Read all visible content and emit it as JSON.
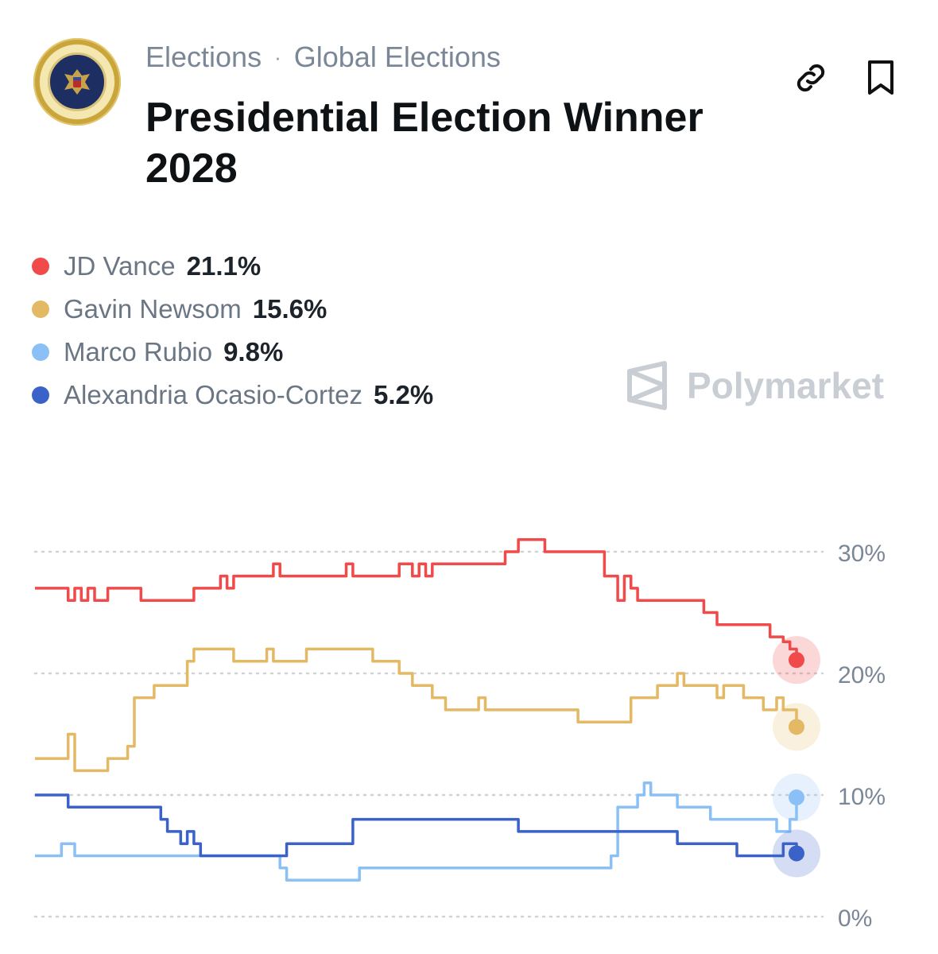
{
  "header": {
    "breadcrumb": [
      "Elections",
      "Global Elections"
    ],
    "separator": "·",
    "title": "Presidential Election Winner 2028"
  },
  "icons": {
    "seal": "presidential-seal-icon",
    "link": "link-icon",
    "bookmark": "bookmark-icon"
  },
  "watermark": "Polymarket",
  "chart_data": {
    "type": "line",
    "title": "Presidential Election Winner 2028",
    "xlabel": "",
    "ylabel": "",
    "ylim": [
      0,
      32
    ],
    "yticks": [
      0,
      10,
      20,
      30
    ],
    "ytick_labels": [
      "0%",
      "10%",
      "20%",
      "30%"
    ],
    "grid": true,
    "legend": "top-left",
    "series": [
      {
        "name": "JD Vance",
        "value_label": "21.1%",
        "color": "#f04a4a",
        "values": [
          27,
          27,
          27,
          27,
          27,
          26,
          27,
          26,
          27,
          26,
          26,
          27,
          27,
          27,
          27,
          27,
          26,
          26,
          26,
          26,
          26,
          26,
          26,
          26,
          27,
          27,
          27,
          27,
          28,
          27,
          28,
          28,
          28,
          28,
          28,
          28,
          29,
          28,
          28,
          28,
          28,
          28,
          28,
          28,
          28,
          28,
          28,
          29,
          28,
          28,
          28,
          28,
          28,
          28,
          28,
          29,
          29,
          28,
          29,
          28,
          29,
          29,
          29,
          29,
          29,
          29,
          29,
          29,
          29,
          29,
          29,
          30,
          30,
          31,
          31,
          31,
          31,
          30,
          30,
          30,
          30,
          30,
          30,
          30,
          30,
          30,
          28,
          28,
          26,
          28,
          27,
          26,
          26,
          26,
          26,
          26,
          26,
          26,
          26,
          26,
          26,
          25,
          25,
          24,
          24,
          24,
          24,
          24,
          24,
          24,
          24,
          23,
          23,
          22.6,
          22,
          21.1
        ]
      },
      {
        "name": "Gavin Newsom",
        "value_label": "15.6%",
        "color": "#e3b965",
        "values": [
          13,
          13,
          13,
          13,
          13,
          15,
          12,
          12,
          12,
          12,
          12,
          13,
          13,
          13,
          14,
          18,
          18,
          18,
          19,
          19,
          19,
          19,
          19,
          21,
          22,
          22,
          22,
          22,
          22,
          22,
          21,
          21,
          21,
          21,
          21,
          22,
          21,
          21,
          21,
          21,
          21,
          22,
          22,
          22,
          22,
          22,
          22,
          22,
          22,
          22,
          22,
          21,
          21,
          21,
          21,
          20,
          20,
          19,
          19,
          19,
          18,
          18,
          17,
          17,
          17,
          17,
          17,
          18,
          17,
          17,
          17,
          17,
          17,
          17,
          17,
          17,
          17,
          17,
          17,
          17,
          17,
          17,
          16,
          16,
          16,
          16,
          16,
          16,
          16,
          16,
          18,
          18,
          18,
          18,
          19,
          19,
          19,
          20,
          19,
          19,
          19,
          19,
          19,
          18,
          19,
          19,
          19,
          18,
          18,
          18,
          17,
          17,
          18,
          17,
          17,
          15.6
        ]
      },
      {
        "name": "Marco Rubio",
        "value_label": "9.8%",
        "color": "#8bc0f7",
        "values": [
          5,
          5,
          5,
          5,
          6,
          6,
          5,
          5,
          5,
          5,
          5,
          5,
          5,
          5,
          5,
          5,
          5,
          5,
          5,
          5,
          5,
          5,
          5,
          5,
          5,
          5,
          5,
          5,
          5,
          5,
          5,
          5,
          5,
          5,
          5,
          5,
          5,
          4,
          3,
          3,
          3,
          3,
          3,
          3,
          3,
          3,
          3,
          3,
          3,
          4,
          4,
          4,
          4,
          4,
          4,
          4,
          4,
          4,
          4,
          4,
          4,
          4,
          4,
          4,
          4,
          4,
          4,
          4,
          4,
          4,
          4,
          4,
          4,
          4,
          4,
          4,
          4,
          4,
          4,
          4,
          4,
          4,
          4,
          4,
          4,
          4,
          4,
          5,
          9,
          9,
          9,
          10,
          11,
          10,
          10,
          10,
          10,
          9,
          9,
          9,
          9,
          9,
          8,
          8,
          8,
          8,
          8,
          8,
          8,
          8,
          8,
          8,
          7,
          7,
          8,
          9.8
        ]
      },
      {
        "name": "Alexandria Ocasio-Cortez",
        "value_label": "5.2%",
        "color": "#3a62c9",
        "values": [
          10,
          10,
          10,
          10,
          10,
          9,
          9,
          9,
          9,
          9,
          9,
          9,
          9,
          9,
          9,
          9,
          9,
          9,
          9,
          8,
          7,
          7,
          6,
          7,
          6,
          5,
          5,
          5,
          5,
          5,
          5,
          5,
          5,
          5,
          5,
          5,
          5,
          5,
          6,
          6,
          6,
          6,
          6,
          6,
          6,
          6,
          6,
          6,
          8,
          8,
          8,
          8,
          8,
          8,
          8,
          8,
          8,
          8,
          8,
          8,
          8,
          8,
          8,
          8,
          8,
          8,
          8,
          8,
          8,
          8,
          8,
          8,
          8,
          7,
          7,
          7,
          7,
          7,
          7,
          7,
          7,
          7,
          7,
          7,
          7,
          7,
          7,
          7,
          7,
          7,
          7,
          7,
          7,
          7,
          7,
          7,
          7,
          6,
          6,
          6,
          6,
          6,
          6,
          6,
          6,
          6,
          5,
          5,
          5,
          5,
          5,
          5,
          5,
          6,
          6,
          5.2
        ]
      }
    ]
  }
}
